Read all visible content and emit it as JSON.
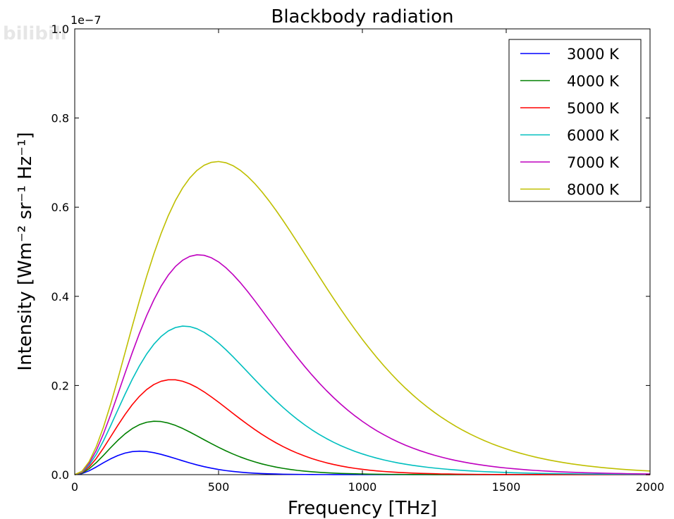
{
  "watermark": "bilibili",
  "chart_data": {
    "type": "line",
    "title": "Blackbody radiation",
    "xlabel": "Frequency [THz]",
    "ylabel": "Intensity [Wm⁻² sr⁻¹ Hz⁻¹]",
    "y_offset_text": "1e−7",
    "xlim": [
      0,
      2000
    ],
    "ylim": [
      0,
      1.0
    ],
    "xticks": [
      0,
      500,
      1000,
      1500,
      2000
    ],
    "xtick_labels": [
      "0",
      "500",
      "1000",
      "1500",
      "2000"
    ],
    "yticks": [
      0,
      0.2,
      0.4,
      0.6,
      0.8,
      1.0
    ],
    "ytick_labels": [
      "0.0",
      "0.2",
      "0.4",
      "0.6",
      "0.8",
      "1.0"
    ],
    "legend_position": "top-right",
    "grid": false,
    "x_step": 25,
    "series": [
      {
        "name": "3000 K",
        "color": "#0000ff",
        "values": [
          0,
          0.0023,
          0.0086,
          0.0172,
          0.0267,
          0.0355,
          0.0429,
          0.0484,
          0.0516,
          0.0527,
          0.0518,
          0.0493,
          0.0455,
          0.041,
          0.0361,
          0.0311,
          0.0263,
          0.0218,
          0.0179,
          0.0145,
          0.0116,
          0.0091,
          0.0072,
          0.0056,
          0.0043,
          0.0033,
          0.0025,
          0.0019,
          0.0014,
          0.001,
          0.0008,
          0.0006,
          0.0004,
          0.0003,
          0.0002,
          0.0002,
          0.0001,
          0.0001,
          0.0001,
          0.0001,
          0,
          0,
          0,
          0,
          0,
          0,
          0,
          0,
          0,
          0,
          0,
          0,
          0,
          0,
          0,
          0,
          0,
          0,
          0,
          0,
          0,
          0,
          0,
          0,
          0,
          0,
          0,
          0,
          0,
          0,
          0,
          0,
          0,
          0,
          0,
          0,
          0,
          0,
          0,
          0,
          0
        ]
      },
      {
        "name": "4000 K",
        "color": "#008000",
        "values": [
          0,
          0.0034,
          0.013,
          0.027,
          0.0434,
          0.0606,
          0.077,
          0.0915,
          0.1033,
          0.1121,
          0.1175,
          0.1198,
          0.1191,
          0.1158,
          0.1105,
          0.1036,
          0.0956,
          0.087,
          0.0782,
          0.0696,
          0.0613,
          0.0535,
          0.0463,
          0.0398,
          0.034,
          0.0288,
          0.0242,
          0.0203,
          0.0169,
          0.014,
          0.0116,
          0.0095,
          0.0078,
          0.0064,
          0.0052,
          0.0042,
          0.0034,
          0.0027,
          0.0022,
          0.0018,
          0.0014,
          0.0011,
          0.0009,
          0.0007,
          0.0006,
          0.0005,
          0.0004,
          0.0003,
          0.0002,
          0.0002,
          0.0001,
          0.0001,
          0.0001,
          0.0001,
          0.0001,
          0,
          0,
          0,
          0,
          0,
          0,
          0,
          0,
          0,
          0,
          0,
          0,
          0,
          0,
          0,
          0,
          0,
          0,
          0,
          0,
          0,
          0,
          0,
          0,
          0,
          0
        ]
      },
      {
        "name": "5000 K",
        "color": "#ff0000",
        "values": [
          0,
          0.0045,
          0.0171,
          0.0364,
          0.0598,
          0.0851,
          0.1107,
          0.135,
          0.157,
          0.1757,
          0.1909,
          0.2021,
          0.2094,
          0.2128,
          0.2128,
          0.2095,
          0.2036,
          0.1955,
          0.1856,
          0.1744,
          0.1625,
          0.1501,
          0.1375,
          0.1251,
          0.1131,
          0.1016,
          0.0907,
          0.0806,
          0.0713,
          0.0627,
          0.0549,
          0.0479,
          0.0416,
          0.036,
          0.031,
          0.0266,
          0.0228,
          0.0194,
          0.0165,
          0.014,
          0.0119,
          0.01,
          0.0084,
          0.0071,
          0.006,
          0.005,
          0.0042,
          0.0035,
          0.0029,
          0.0024,
          0.002,
          0.0016,
          0.0014,
          0.0011,
          0.0009,
          0.0008,
          0.0006,
          0.0005,
          0.0004,
          0.0003,
          0.0003,
          0.0002,
          0.0002,
          0.0002,
          0.0001,
          0.0001,
          0.0001,
          0.0001,
          0.0001,
          0,
          0,
          0,
          0,
          0,
          0,
          0,
          0,
          0,
          0,
          0,
          0
        ]
      },
      {
        "name": "6000 K",
        "color": "#00bfbf",
        "values": [
          0,
          0.0055,
          0.0212,
          0.0456,
          0.076,
          0.11,
          0.1455,
          0.1805,
          0.2138,
          0.2441,
          0.2705,
          0.2925,
          0.3098,
          0.3223,
          0.33,
          0.3332,
          0.3321,
          0.3273,
          0.3192,
          0.3084,
          0.2953,
          0.2806,
          0.2647,
          0.248,
          0.231,
          0.214,
          0.1972,
          0.1809,
          0.1653,
          0.1504,
          0.1365,
          0.1235,
          0.1114,
          0.1003,
          0.0902,
          0.081,
          0.0726,
          0.065,
          0.0582,
          0.052,
          0.0465,
          0.0415,
          0.037,
          0.033,
          0.0294,
          0.0262,
          0.0234,
          0.0208,
          0.0186,
          0.0166,
          0.0148,
          0.0132,
          0.0118,
          0.0105,
          0.0094,
          0.0084,
          0.0075,
          0.0067,
          0.006,
          0.0054,
          0.0048,
          0.0043,
          0.0038,
          0.0034,
          0.0031,
          0.0027,
          0.0024,
          0.0022,
          0.002,
          0.0018,
          0.0016,
          0.0014,
          0.0013,
          0.0011,
          0.001,
          0.0009,
          0.0008,
          0.0007,
          0.0007,
          0.0006,
          0.0005
        ]
      },
      {
        "name": "7000 K",
        "color": "#bf00bf",
        "values": [
          0,
          0.0065,
          0.0251,
          0.0542,
          0.0918,
          0.1347,
          0.1808,
          0.2277,
          0.2736,
          0.317,
          0.3567,
          0.392,
          0.4224,
          0.4474,
          0.4669,
          0.4809,
          0.4896,
          0.4932,
          0.492,
          0.4865,
          0.4772,
          0.4645,
          0.449,
          0.4312,
          0.4117,
          0.3909,
          0.3694,
          0.3474,
          0.3255,
          0.3038,
          0.2826,
          0.262,
          0.2422,
          0.2234,
          0.2055,
          0.1886,
          0.1728,
          0.158,
          0.1442,
          0.1314,
          0.1195,
          0.1086,
          0.0985,
          0.0893,
          0.0808,
          0.0731,
          0.066,
          0.0596,
          0.0538,
          0.0485,
          0.0437,
          0.0393,
          0.0353,
          0.0317,
          0.0285,
          0.0256,
          0.023,
          0.0206,
          0.0185,
          0.0165,
          0.0148,
          0.0133,
          0.0119,
          0.0106,
          0.0095,
          0.0085,
          0.0076,
          0.0068,
          0.006,
          0.0054,
          0.0048,
          0.0043,
          0.0038,
          0.0034,
          0.003,
          0.0027,
          0.0024,
          0.0021,
          0.0019,
          0.0017,
          0.0015
        ]
      },
      {
        "name": "8000 K",
        "color": "#bfbf00",
        "values": [
          0,
          0.0075,
          0.0291,
          0.063,
          0.1068,
          0.1583,
          0.2148,
          0.2738,
          0.3329,
          0.3904,
          0.4448,
          0.4951,
          0.5405,
          0.5806,
          0.6148,
          0.6431,
          0.6656,
          0.6825,
          0.6941,
          0.7006,
          0.7024,
          0.6998,
          0.6932,
          0.683,
          0.6697,
          0.6536,
          0.6351,
          0.6146,
          0.5926,
          0.5693,
          0.5451,
          0.5202,
          0.495,
          0.4697,
          0.4444,
          0.4194,
          0.3949,
          0.3709,
          0.3476,
          0.3251,
          0.3034,
          0.2827,
          0.2629,
          0.2441,
          0.2263,
          0.2095,
          0.1937,
          0.1789,
          0.165,
          0.152,
          0.1399,
          0.1286,
          0.1181,
          0.1083,
          0.0993,
          0.0909,
          0.0832,
          0.076,
          0.0694,
          0.0634,
          0.0578,
          0.0526,
          0.0479,
          0.0436,
          0.0396,
          0.036,
          0.0327,
          0.0297,
          0.027,
          0.0244,
          0.0222,
          0.0201,
          0.0182,
          0.0165,
          0.0149,
          0.0135,
          0.0122,
          0.011,
          0.01,
          0.009,
          0.0082
        ]
      }
    ]
  }
}
